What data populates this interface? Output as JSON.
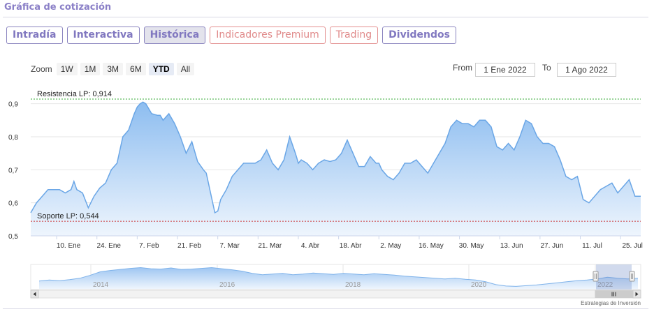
{
  "header": {
    "title": "Gráfica de cotización"
  },
  "tabs": [
    {
      "label": "Intradía",
      "state": "normal"
    },
    {
      "label": "Interactiva",
      "state": "normal"
    },
    {
      "label": "Histórica",
      "state": "active"
    },
    {
      "label": "Indicadores Premium",
      "state": "premium"
    },
    {
      "label": "Trading",
      "state": "premium"
    },
    {
      "label": "Dividendos",
      "state": "normal"
    }
  ],
  "zoom": {
    "label": "Zoom",
    "buttons": [
      "1W",
      "1M",
      "3M",
      "6M",
      "YTD",
      "All"
    ],
    "selected": "YTD"
  },
  "range": {
    "from_label": "From",
    "from_value": "1 Ene 2022",
    "to_label": "To",
    "to_value": "1 Ago 2022"
  },
  "credit": "Estrategias de Inversión",
  "colors": {
    "line": "#6aa6e6",
    "fill_top": "#8dbdf0",
    "fill_bottom": "#eef5fd",
    "resistance": "#33aa33",
    "support": "#cc3333",
    "navigator_mask": "rgba(102,133,194,0.3)"
  },
  "chart_data": {
    "type": "area",
    "ylim": [
      0.5,
      0.95
    ],
    "yticks": [
      "0,5",
      "0,6",
      "0,7",
      "0,8",
      "0,9"
    ],
    "ytick_values": [
      0.5,
      0.6,
      0.7,
      0.8,
      0.9
    ],
    "xticks": [
      "10. Ene",
      "24. Ene",
      "7. Feb",
      "21. Feb",
      "7. Mar",
      "21. Mar",
      "4. Abr",
      "18. Abr",
      "2. May",
      "16. May",
      "30. May",
      "13. Jun",
      "27. Jun",
      "11. Jul",
      "25. Jul"
    ],
    "xtick_days": [
      9,
      23,
      37,
      51,
      65,
      79,
      93,
      107,
      121,
      135,
      149,
      163,
      177,
      191,
      205
    ],
    "xlim_days": [
      0,
      212
    ],
    "annotations": [
      {
        "label": "Resistencia LP: 0,914",
        "value": 0.914,
        "style": "dotted-green"
      },
      {
        "label": "Soporte LP: 0,544",
        "value": 0.544,
        "style": "dotted-red"
      }
    ],
    "series": [
      {
        "day": [
          0,
          2,
          4,
          6,
          8,
          10,
          12,
          14,
          15,
          16,
          18,
          20,
          22,
          24,
          26,
          28,
          30,
          32,
          34,
          36,
          37,
          38,
          39,
          40,
          42,
          44,
          45,
          46,
          48,
          50,
          51,
          52,
          54,
          56,
          58,
          60,
          61,
          62,
          64,
          65,
          66,
          68,
          70,
          72,
          74,
          76,
          78,
          80,
          82,
          84,
          86,
          88,
          90,
          92,
          93,
          94,
          96,
          98,
          100,
          102,
          104,
          106,
          108,
          110,
          112,
          114,
          116,
          118,
          120,
          121,
          122,
          124,
          126,
          128,
          130,
          132,
          134,
          136,
          138,
          140,
          142,
          144,
          146,
          148,
          150,
          152,
          154,
          156,
          158,
          160,
          162,
          164,
          166,
          168,
          170,
          172,
          174,
          176,
          178,
          180,
          182,
          184,
          186,
          188,
          190,
          192,
          194,
          196,
          198,
          200,
          202,
          204,
          206,
          208,
          210,
          212
        ],
        "close": [
          0.57,
          0.6,
          0.62,
          0.64,
          0.64,
          0.64,
          0.63,
          0.64,
          0.665,
          0.64,
          0.63,
          0.585,
          0.62,
          0.645,
          0.66,
          0.7,
          0.72,
          0.8,
          0.82,
          0.87,
          0.89,
          0.9,
          0.905,
          0.9,
          0.87,
          0.865,
          0.865,
          0.85,
          0.87,
          0.84,
          0.82,
          0.8,
          0.75,
          0.785,
          0.725,
          0.7,
          0.69,
          0.65,
          0.57,
          0.575,
          0.61,
          0.64,
          0.68,
          0.7,
          0.72,
          0.72,
          0.72,
          0.73,
          0.76,
          0.72,
          0.7,
          0.73,
          0.8,
          0.75,
          0.72,
          0.73,
          0.72,
          0.7,
          0.72,
          0.73,
          0.725,
          0.73,
          0.75,
          0.79,
          0.75,
          0.71,
          0.71,
          0.74,
          0.72,
          0.72,
          0.7,
          0.68,
          0.67,
          0.69,
          0.72,
          0.72,
          0.73,
          0.71,
          0.69,
          0.72,
          0.75,
          0.78,
          0.83,
          0.85,
          0.84,
          0.84,
          0.83,
          0.85,
          0.85,
          0.83,
          0.77,
          0.76,
          0.78,
          0.76,
          0.8,
          0.85,
          0.84,
          0.8,
          0.78,
          0.78,
          0.77,
          0.73,
          0.68,
          0.67,
          0.68,
          0.61,
          0.6,
          0.62,
          0.64,
          0.65,
          0.66,
          0.63,
          0.65,
          0.67,
          0.62,
          0.62
        ]
      }
    ]
  },
  "navigator": {
    "year_labels": [
      "2014",
      "2016",
      "2018",
      "2020",
      "2022"
    ],
    "values": [
      0.52,
      0.55,
      0.53,
      0.56,
      0.6,
      0.68,
      0.78,
      0.82,
      0.85,
      0.88,
      0.9,
      0.87,
      0.86,
      0.89,
      0.85,
      0.86,
      0.88,
      0.9,
      0.87,
      0.84,
      0.8,
      0.74,
      0.7,
      0.72,
      0.74,
      0.7,
      0.72,
      0.75,
      0.73,
      0.71,
      0.74,
      0.72,
      0.7,
      0.73,
      0.71,
      0.69,
      0.66,
      0.64,
      0.62,
      0.6,
      0.58,
      0.6,
      0.57,
      0.55,
      0.5,
      0.42,
      0.38,
      0.37,
      0.39,
      0.41,
      0.44,
      0.47,
      0.5,
      0.53,
      0.55,
      0.58,
      0.63,
      0.6,
      0.58,
      0.6
    ]
  }
}
